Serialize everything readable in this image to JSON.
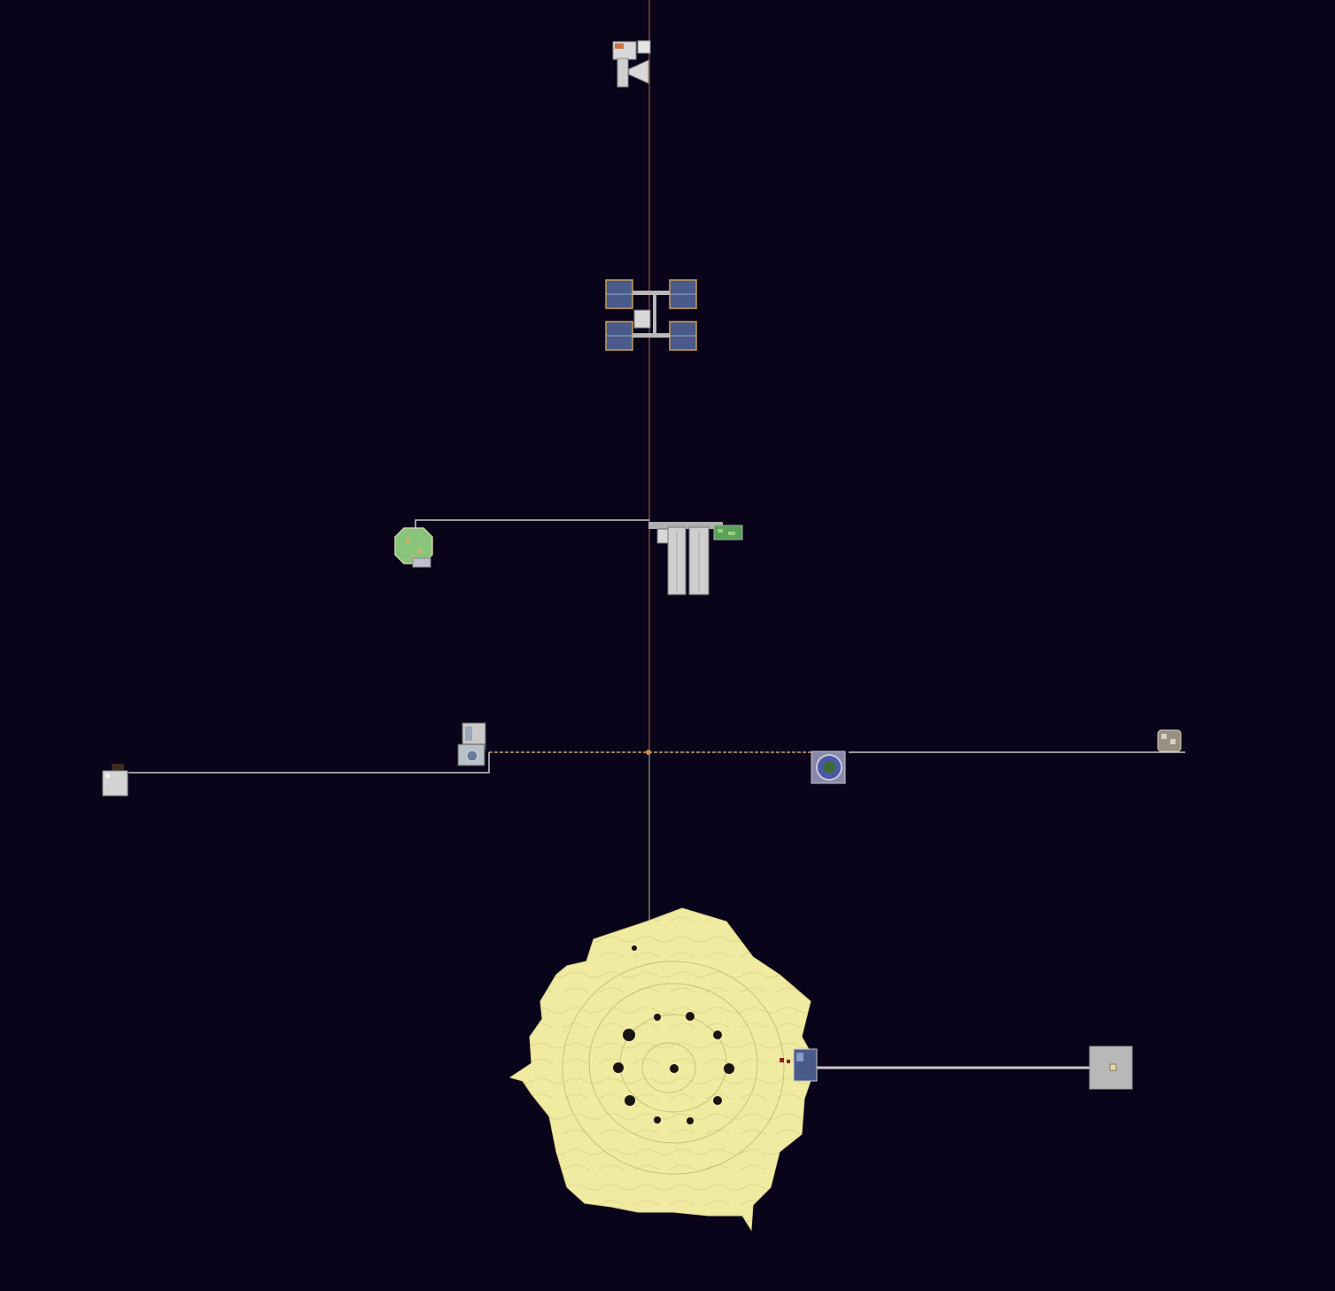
{
  "map": {
    "view": "top-down",
    "background_color": "#0a041a",
    "colors": {
      "island": "#f0eba0",
      "island_contour": "#bdb772",
      "bridge": "#c8c8c8",
      "spine_line": "#8a5a3a",
      "structure_grey": "#c9c9c9",
      "structure_blue": "#4a5a8a",
      "structure_green": "#8ac47a",
      "platform": "#b8b8b8"
    },
    "structures": [
      {
        "icon": "space-station-structure",
        "name": "top-outpost"
      },
      {
        "icon": "solar-array-structure",
        "name": "solar-hub"
      },
      {
        "icon": "garden-dome-structure",
        "name": "green-dome"
      },
      {
        "icon": "silo-structure",
        "name": "silo-complex"
      },
      {
        "icon": "machinery-structure",
        "name": "machine-station"
      },
      {
        "icon": "cabin-structure",
        "name": "west-cabin"
      },
      {
        "icon": "portal-structure",
        "name": "portal-ring"
      },
      {
        "icon": "ruin-structure",
        "name": "east-ruin"
      },
      {
        "icon": "island-terrain",
        "name": "main-island"
      },
      {
        "icon": "square-platform",
        "name": "south-platform"
      }
    ]
  }
}
